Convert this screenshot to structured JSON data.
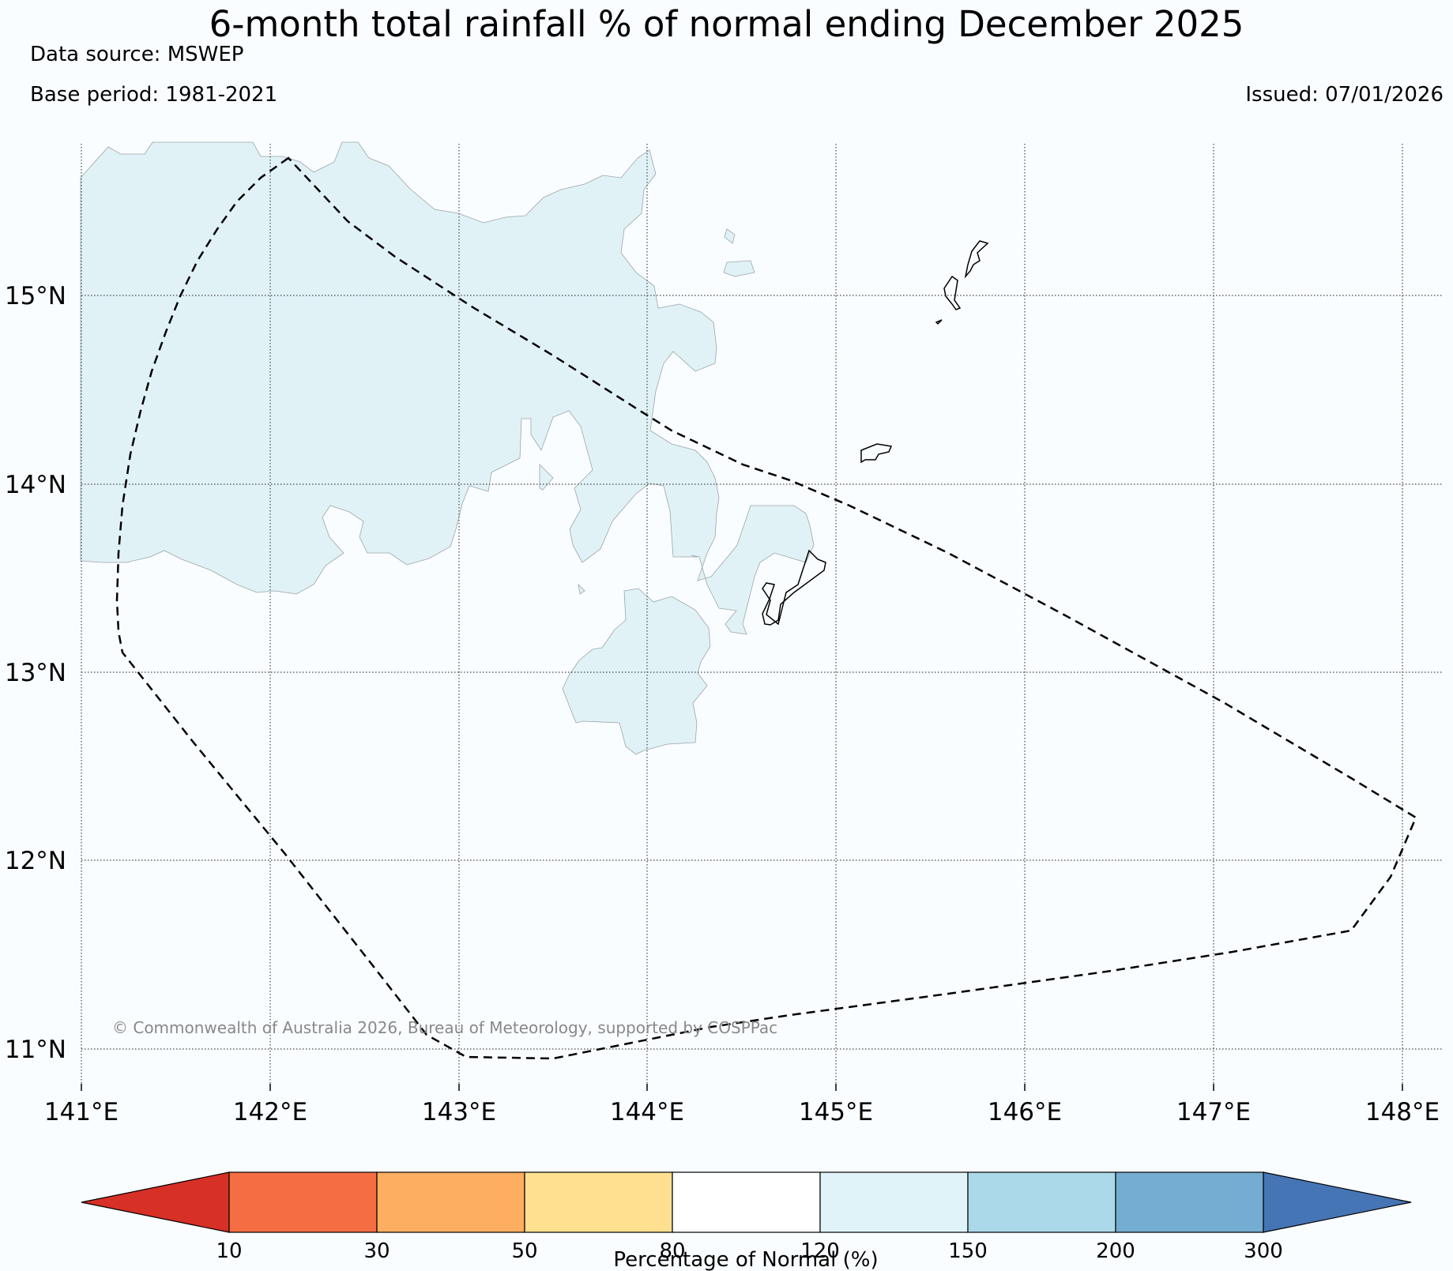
{
  "header": {
    "title": "6-month total rainfall % of normal ending December 2025",
    "data_source": "Data source: MSWEP",
    "base_period": "Base period: 1981-2021",
    "issued": "Issued: 07/01/2026"
  },
  "map": {
    "lat_labels": [
      "15°N",
      "14°N",
      "13°N",
      "12°N",
      "11°N"
    ],
    "lon_labels": [
      "141°E",
      "142°E",
      "143°E",
      "144°E",
      "145°E",
      "146°E",
      "147°E",
      "148°E"
    ],
    "credit": "© Commonwealth of Australia 2026, Bureau of Meteorology, supported by COSPPac",
    "land_color_120_150": "#e1f2f7"
  },
  "colorbar": {
    "title": "Percentage of Normal (%)",
    "tick_labels": [
      "10",
      "30",
      "50",
      "80",
      "120",
      "150",
      "200",
      "300"
    ],
    "colors": [
      "#d73027",
      "#f46d43",
      "#fdae61",
      "#fee090",
      "#ffffff",
      "#e0f3f8",
      "#abd9e9",
      "#74add1",
      "#4575b4"
    ]
  }
}
